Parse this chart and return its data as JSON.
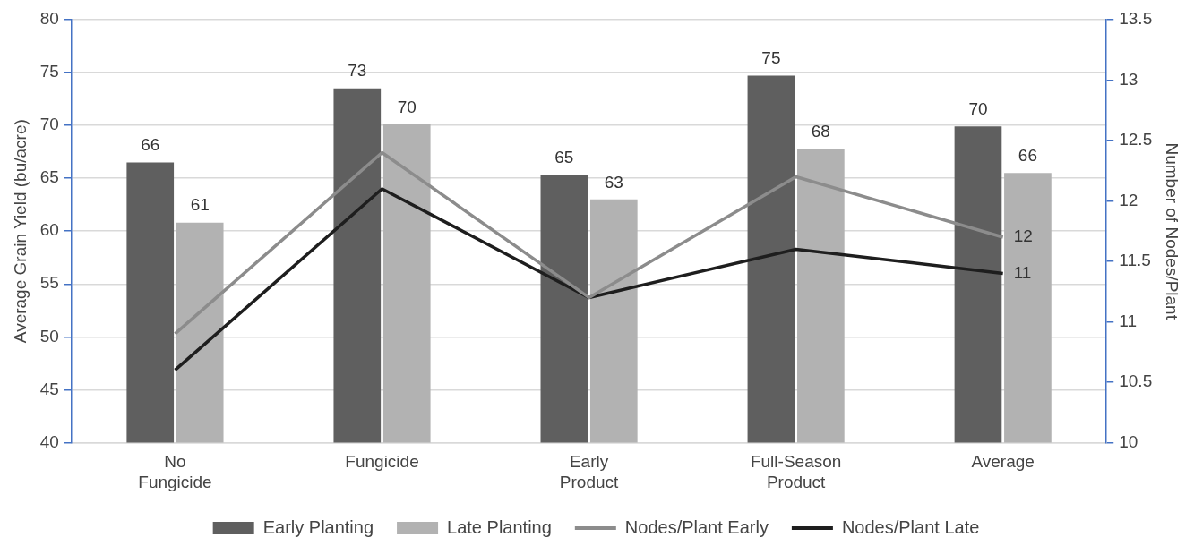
{
  "chart_data": {
    "type": "bar",
    "ylabel": "Average Grain Yield (bu/acre)",
    "y2label": "Number of Nodes/Plant",
    "categories": [
      "No Fungicide",
      "Fungicide",
      "Early Product",
      "Full-Season Product",
      "Average"
    ],
    "series": [
      {
        "name": "Early Planting",
        "color": "#5f5f5f",
        "values": [
          66.5,
          73.5,
          65.3,
          74.7,
          69.9
        ],
        "value_labels": [
          "66",
          "73",
          "65",
          "75",
          "70"
        ]
      },
      {
        "name": "Late Planting",
        "color": "#b2b2b2",
        "values": [
          60.8,
          70.1,
          63.0,
          67.8,
          65.5
        ],
        "value_labels": [
          "61",
          "70",
          "63",
          "68",
          "66"
        ]
      },
      {
        "name": "Nodes/Plant Early",
        "type": "line",
        "axis": "y2",
        "color": "#8c8c8c",
        "values": [
          10.9,
          12.4,
          11.2,
          12.2,
          11.7
        ],
        "value_labels": [
          null,
          null,
          null,
          null,
          "12"
        ]
      },
      {
        "name": "Nodes/Plant Late",
        "type": "line",
        "axis": "y2",
        "color": "#1e1e1e",
        "values": [
          10.6,
          12.1,
          11.2,
          11.6,
          11.4
        ],
        "value_labels": [
          null,
          null,
          null,
          null,
          "11"
        ]
      }
    ],
    "ylim": [
      40,
      80
    ],
    "yticks": [
      40,
      45,
      50,
      55,
      60,
      65,
      70,
      75,
      80
    ],
    "y2lim": [
      10,
      13.5
    ],
    "y2ticks": [
      10,
      10.5,
      11,
      11.5,
      12,
      12.5,
      13,
      13.5
    ],
    "grid": "y",
    "legend": "bottom",
    "marker": "none",
    "line_style": "solid"
  }
}
